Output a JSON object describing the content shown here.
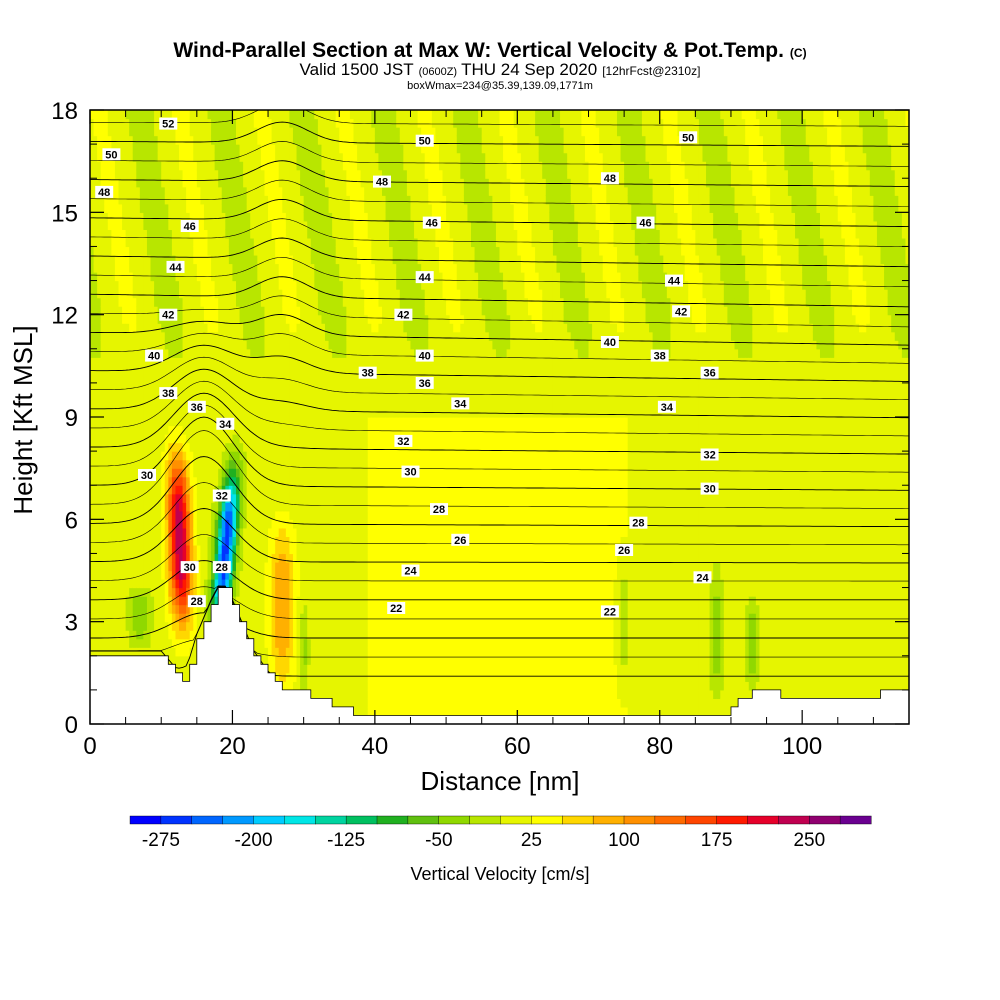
{
  "header": {
    "title_main": "Wind-Parallel Section at Max W: Vertical Velocity & Pot.Temp.",
    "title_suffix": "(C)",
    "valid_prefix": "Valid 1500 JST",
    "valid_utc": "(0600Z)",
    "valid_date": "THU 24 Sep 2020",
    "fcst": "[12hrFcst@2310z]",
    "boxline": "boxWmax=234@35.39,139.09,1771m"
  },
  "colors": {
    "background_field": "#b8e600",
    "weak_updraft": "#ffff00",
    "terrain": "#ffffff",
    "contour_line": "#000000",
    "frame": "#000000"
  },
  "chart_data": {
    "type": "heatmap",
    "xlabel": "Distance [nm]",
    "ylabel": "Height [Kft MSL]",
    "xlim": [
      0,
      115
    ],
    "ylim": [
      0,
      18
    ],
    "xticks": [
      0,
      20,
      40,
      60,
      80,
      100
    ],
    "yticks": [
      0,
      3,
      6,
      9,
      12,
      15,
      18
    ],
    "xtick_labels": [
      "0",
      "20",
      "40",
      "60",
      "80",
      "100"
    ],
    "ytick_labels": [
      "0",
      "3",
      "6",
      "9",
      "12",
      "15",
      "18"
    ],
    "colorbar": {
      "label": "Vertical Velocity [cm/s]",
      "tick_labels": [
        "-275",
        "-200",
        "-125",
        "-50",
        "25",
        "100",
        "175",
        "250"
      ],
      "tick_values": [
        -275,
        -200,
        -125,
        -50,
        25,
        100,
        175,
        250
      ],
      "levels": [
        -300,
        -275,
        -250,
        -225,
        -200,
        -175,
        -150,
        -125,
        -100,
        -75,
        -50,
        -25,
        0,
        25,
        50,
        75,
        100,
        125,
        150,
        175,
        200,
        225,
        250,
        275,
        300
      ],
      "colors": [
        "#0000ff",
        "#0033ff",
        "#0066ff",
        "#0099ff",
        "#00ccff",
        "#00e6e6",
        "#00d4a0",
        "#00c060",
        "#20b020",
        "#60c010",
        "#90d800",
        "#b8e600",
        "#e6f500",
        "#ffff00",
        "#ffd700",
        "#ffb000",
        "#ff9000",
        "#ff6a00",
        "#ff4500",
        "#ff1a00",
        "#e6002a",
        "#c00050",
        "#900070",
        "#6a0090"
      ]
    },
    "terrain": [
      [
        0,
        2.0
      ],
      [
        2,
        2.0
      ],
      [
        4,
        2.0
      ],
      [
        6,
        2.0
      ],
      [
        8,
        2.0
      ],
      [
        10,
        2.0
      ],
      [
        12,
        1.5
      ],
      [
        13,
        1.3
      ],
      [
        14,
        1.8
      ],
      [
        15,
        2.5
      ],
      [
        16,
        3.0
      ],
      [
        17,
        3.5
      ],
      [
        18,
        3.9
      ],
      [
        19,
        3.9
      ],
      [
        20,
        3.5
      ],
      [
        21,
        3.0
      ],
      [
        22,
        2.5
      ],
      [
        23,
        2.0
      ],
      [
        24,
        1.7
      ],
      [
        25,
        1.4
      ],
      [
        26,
        1.2
      ],
      [
        28,
        1.0
      ],
      [
        30,
        0.9
      ],
      [
        32,
        0.8
      ],
      [
        34,
        0.6
      ],
      [
        36,
        0.4
      ],
      [
        38,
        0.3
      ],
      [
        40,
        0.3
      ],
      [
        45,
        0.3
      ],
      [
        50,
        0.3
      ],
      [
        55,
        0.3
      ],
      [
        60,
        0.3
      ],
      [
        65,
        0.3
      ],
      [
        70,
        0.3
      ],
      [
        75,
        0.3
      ],
      [
        80,
        0.3
      ],
      [
        85,
        0.3
      ],
      [
        89,
        0.3
      ],
      [
        90,
        0.6
      ],
      [
        92,
        0.7
      ],
      [
        93,
        1.0
      ],
      [
        96,
        1.0
      ],
      [
        97,
        0.7
      ],
      [
        100,
        0.7
      ],
      [
        105,
        0.7
      ],
      [
        110,
        0.7
      ],
      [
        111,
        1.0
      ],
      [
        115,
        1.0
      ]
    ],
    "vertical_velocity_features": [
      {
        "name": "updraft-core",
        "x_center": 13,
        "z_bottom": 2.8,
        "z_top": 8.0,
        "half_width": 2.0,
        "value": 234
      },
      {
        "name": "downdraft-core",
        "x_center": 18,
        "z_bottom": 2.8,
        "z_top": 7.5,
        "half_width": 1.7,
        "value": -275
      },
      {
        "name": "secondary-updraft",
        "x_center": 27,
        "z_bottom": 1.0,
        "z_top": 6.0,
        "half_width": 2.2,
        "value": 90
      },
      {
        "name": "weak-downdraft-left",
        "x_center": 7,
        "z_bottom": 2.3,
        "z_top": 4.0,
        "half_width": 1.8,
        "value": -60
      },
      {
        "name": "downdraft-band-88",
        "x_center": 88,
        "z_bottom": 0.8,
        "z_top": 4.5,
        "half_width": 1.0,
        "value": -50
      },
      {
        "name": "downdraft-band-93",
        "x_center": 93,
        "z_bottom": 1.2,
        "z_top": 3.5,
        "half_width": 1.0,
        "value": -60
      },
      {
        "name": "downdraft-band-75",
        "x_center": 75,
        "z_bottom": 1.0,
        "z_top": 5.0,
        "half_width": 1.2,
        "value": -40
      },
      {
        "name": "downdraft-band-30",
        "x_center": 30,
        "z_bottom": 1.0,
        "z_top": 3.5,
        "half_width": 0.8,
        "value": -45
      }
    ],
    "weak_updraft_region": {
      "x_min": 37,
      "x_max": 78,
      "z_min": 0.3,
      "z_max": 9.0,
      "value": 30
    },
    "theta_contours": {
      "levels": [
        22,
        24,
        26,
        28,
        30,
        32,
        34,
        36,
        38,
        40,
        42,
        44,
        46,
        48,
        50,
        52
      ],
      "labels": [
        {
          "text": "52",
          "x": 11,
          "z": 17.6
        },
        {
          "text": "50",
          "x": 3,
          "z": 16.7
        },
        {
          "text": "48",
          "x": 2,
          "z": 15.6
        },
        {
          "text": "46",
          "x": 14,
          "z": 14.6
        },
        {
          "text": "44",
          "x": 12,
          "z": 13.4
        },
        {
          "text": "42",
          "x": 11,
          "z": 12.0
        },
        {
          "text": "40",
          "x": 9,
          "z": 10.8
        },
        {
          "text": "38",
          "x": 11,
          "z": 9.7
        },
        {
          "text": "36",
          "x": 15,
          "z": 9.3
        },
        {
          "text": "34",
          "x": 19,
          "z": 8.8
        },
        {
          "text": "30",
          "x": 8,
          "z": 7.3
        },
        {
          "text": "32",
          "x": 18.5,
          "z": 6.7
        },
        {
          "text": "30",
          "x": 14,
          "z": 4.6
        },
        {
          "text": "28",
          "x": 18.5,
          "z": 4.6
        },
        {
          "text": "28",
          "x": 15,
          "z": 3.6
        },
        {
          "text": "50",
          "x": 47,
          "z": 17.1
        },
        {
          "text": "50",
          "x": 84,
          "z": 17.2
        },
        {
          "text": "48",
          "x": 41,
          "z": 15.9
        },
        {
          "text": "48",
          "x": 73,
          "z": 16.0
        },
        {
          "text": "46",
          "x": 48,
          "z": 14.7
        },
        {
          "text": "46",
          "x": 78,
          "z": 14.7
        },
        {
          "text": "44",
          "x": 47,
          "z": 13.1
        },
        {
          "text": "44",
          "x": 82,
          "z": 13.0
        },
        {
          "text": "42",
          "x": 44,
          "z": 12.0
        },
        {
          "text": "42",
          "x": 83,
          "z": 12.1
        },
        {
          "text": "40",
          "x": 47,
          "z": 10.8
        },
        {
          "text": "40",
          "x": 73,
          "z": 11.2
        },
        {
          "text": "38",
          "x": 39,
          "z": 10.3
        },
        {
          "text": "38",
          "x": 80,
          "z": 10.8
        },
        {
          "text": "36",
          "x": 47,
          "z": 10.0
        },
        {
          "text": "36",
          "x": 87,
          "z": 10.3
        },
        {
          "text": "34",
          "x": 52,
          "z": 9.4
        },
        {
          "text": "34",
          "x": 81,
          "z": 9.3
        },
        {
          "text": "32",
          "x": 44,
          "z": 8.3
        },
        {
          "text": "32",
          "x": 87,
          "z": 7.9
        },
        {
          "text": "30",
          "x": 45,
          "z": 7.4
        },
        {
          "text": "30",
          "x": 87,
          "z": 6.9
        },
        {
          "text": "28",
          "x": 49,
          "z": 6.3
        },
        {
          "text": "28",
          "x": 77,
          "z": 5.9
        },
        {
          "text": "26",
          "x": 52,
          "z": 5.4
        },
        {
          "text": "26",
          "x": 75,
          "z": 5.1
        },
        {
          "text": "24",
          "x": 45,
          "z": 4.5
        },
        {
          "text": "24",
          "x": 86,
          "z": 4.3
        },
        {
          "text": "22",
          "x": 43,
          "z": 3.4
        },
        {
          "text": "22",
          "x": 73,
          "z": 3.3
        }
      ]
    }
  }
}
